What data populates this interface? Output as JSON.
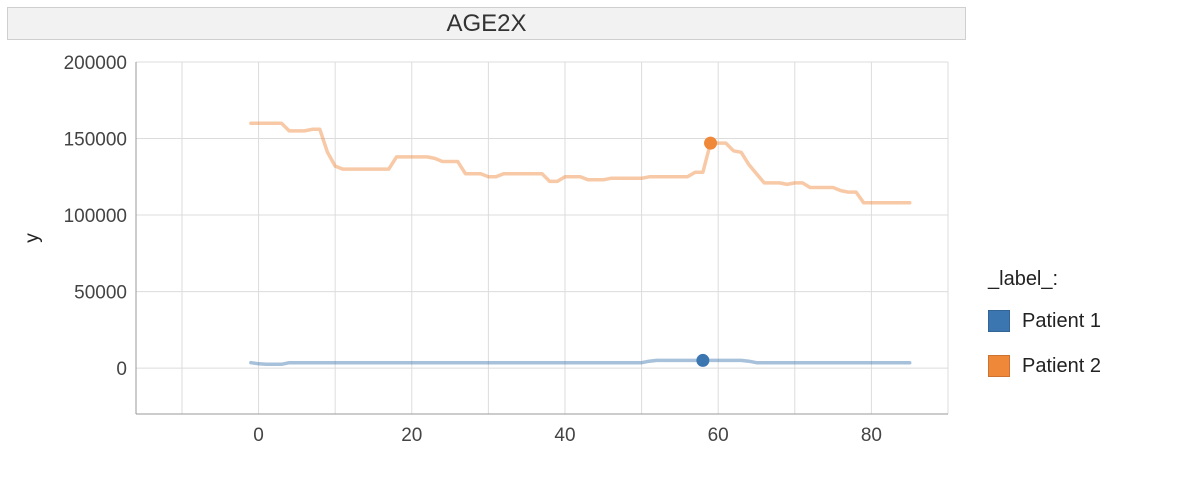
{
  "chart_data": {
    "type": "line",
    "title": "AGE2X",
    "xlabel": "",
    "ylabel": "y",
    "xlim": [
      -16,
      90
    ],
    "ylim": [
      -30000,
      200000
    ],
    "xticks": [
      0,
      20,
      40,
      60,
      80
    ],
    "yticks": [
      0,
      50000,
      100000,
      150000,
      200000
    ],
    "grid": true,
    "legend": {
      "title": "_label_:",
      "position": "right"
    },
    "series": [
      {
        "name": "Patient 1",
        "color": "#3b76b0",
        "x": [
          -1,
          0,
          1,
          2,
          3,
          4,
          5,
          10,
          20,
          30,
          40,
          50,
          51,
          52,
          55,
          58,
          60,
          63,
          64,
          65,
          66,
          70,
          80,
          85
        ],
        "values": [
          3500,
          2800,
          2500,
          2500,
          2500,
          3500,
          3500,
          3500,
          3500,
          3500,
          3500,
          3500,
          4500,
          5000,
          5000,
          5000,
          5000,
          5000,
          4500,
          3500,
          3500,
          3500,
          3500,
          3500
        ],
        "highlight": {
          "x": 58,
          "y": 5000
        }
      },
      {
        "name": "Patient 2",
        "color": "#f0883a",
        "x": [
          -1,
          0,
          1,
          2,
          3,
          4,
          5,
          6,
          7,
          8,
          9,
          10,
          11,
          15,
          16,
          17,
          18,
          20,
          22,
          23,
          24,
          25,
          26,
          27,
          28,
          29,
          30,
          31,
          32,
          33,
          36,
          37,
          38,
          39,
          40,
          41,
          42,
          43,
          44,
          45,
          46,
          47,
          48,
          49,
          50,
          51,
          52,
          53,
          54,
          55,
          56,
          57,
          58,
          59,
          60,
          61,
          62,
          63,
          64,
          65,
          66,
          67,
          68,
          69,
          70,
          71,
          72,
          73,
          74,
          75,
          76,
          77,
          78,
          79,
          85
        ],
        "values": [
          160000,
          160000,
          160000,
          160000,
          160000,
          155000,
          155000,
          155000,
          156000,
          156000,
          141000,
          132000,
          130000,
          130000,
          130000,
          130000,
          138000,
          138000,
          138000,
          137000,
          135000,
          135000,
          135000,
          127000,
          127000,
          127000,
          125000,
          125000,
          127000,
          127000,
          127000,
          127000,
          122000,
          122000,
          125000,
          125000,
          125000,
          123000,
          123000,
          123000,
          124000,
          124000,
          124000,
          124000,
          124000,
          125000,
          125000,
          125000,
          125000,
          125000,
          125000,
          128000,
          128000,
          147000,
          147000,
          147000,
          142000,
          141000,
          133000,
          127000,
          121000,
          121000,
          121000,
          120000,
          121000,
          121000,
          118000,
          118000,
          118000,
          118000,
          116000,
          115000,
          115000,
          108000,
          108000
        ],
        "highlight": {
          "x": 59,
          "y": 147000
        }
      }
    ]
  }
}
